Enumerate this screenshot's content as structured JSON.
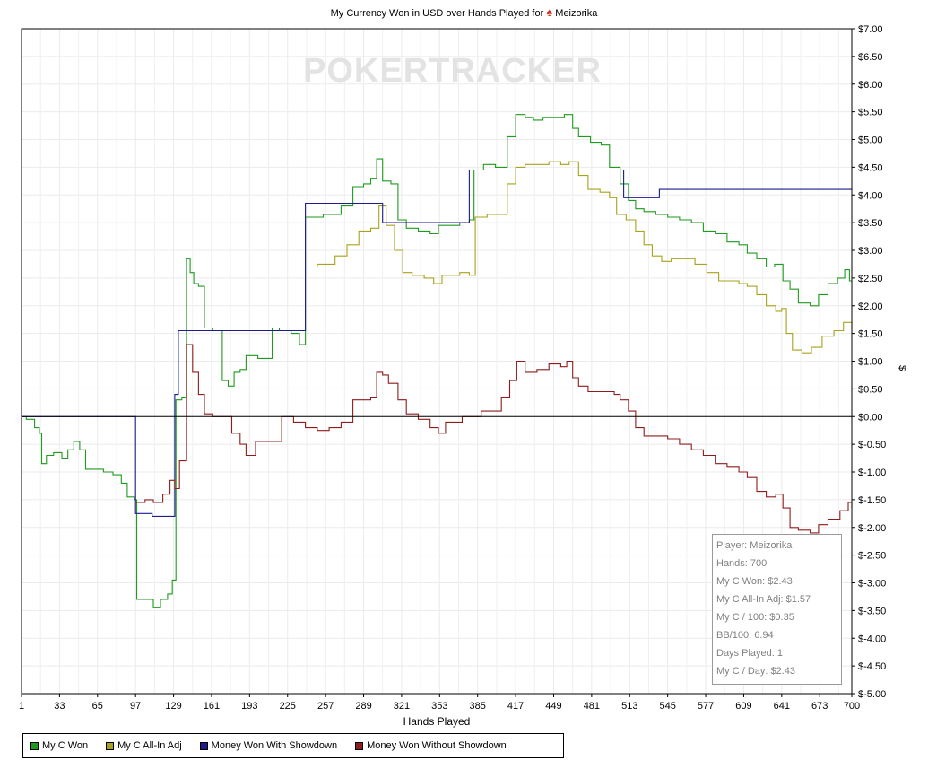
{
  "title_prefix": "My Currency Won in USD over Hands Played for",
  "player_name": "Meizorika",
  "watermark": "POKERTRACKER",
  "colors": {
    "green": "#1e9a1e",
    "olive": "#a8a21c",
    "blue": "#1c1c8e",
    "red": "#8e1c1c"
  },
  "stats": {
    "player": "Player: Meizorika",
    "hands": "Hands: 700",
    "won": "My C Won: $2.43",
    "allin": "My C All-In Adj: $1.57",
    "per100": "My C / 100: $0.35",
    "bb100": "BB/100: 6.94",
    "days": "Days Played: 1",
    "perday": "My C / Day: $2.43"
  },
  "chart_data": {
    "type": "line",
    "title": "My Currency Won in USD over Hands Played for Meizorika",
    "xlabel": "Hands Played",
    "ylabel": "$",
    "xlim": [
      1,
      700
    ],
    "ylim": [
      -5,
      7
    ],
    "x_ticks": [
      1,
      33,
      65,
      97,
      129,
      161,
      193,
      225,
      257,
      289,
      321,
      353,
      385,
      417,
      449,
      481,
      513,
      545,
      577,
      609,
      641,
      673,
      700
    ],
    "y_ticks": [
      "$7.00",
      "$6.50",
      "$6.00",
      "$5.50",
      "$5.00",
      "$4.50",
      "$4.00",
      "$3.50",
      "$3.00",
      "$2.50",
      "$2.00",
      "$1.50",
      "$1.00",
      "$0.50",
      "$0.00",
      "$-0.50",
      "$-1.00",
      "$-1.50",
      "$-2.00",
      "$-2.50",
      "$-3.00",
      "$-3.50",
      "$-4.00",
      "$-4.50",
      "$-5.00"
    ],
    "grid": true,
    "legend_position": "bottom-left",
    "series": [
      {
        "name": "My C Won",
        "color": "#1e9a1e",
        "points": [
          [
            1,
            0
          ],
          [
            5,
            -0.05
          ],
          [
            12,
            -0.2
          ],
          [
            16,
            -0.3
          ],
          [
            18,
            -0.85
          ],
          [
            22,
            -0.7
          ],
          [
            28,
            -0.65
          ],
          [
            35,
            -0.75
          ],
          [
            40,
            -0.6
          ],
          [
            45,
            -0.45
          ],
          [
            50,
            -0.6
          ],
          [
            55,
            -0.95
          ],
          [
            62,
            -0.95
          ],
          [
            70,
            -1.0
          ],
          [
            78,
            -1.05
          ],
          [
            85,
            -1.2
          ],
          [
            90,
            -1.45
          ],
          [
            96,
            -1.5
          ],
          [
            98,
            -3.3
          ],
          [
            105,
            -3.3
          ],
          [
            112,
            -3.45
          ],
          [
            118,
            -3.3
          ],
          [
            124,
            -3.2
          ],
          [
            128,
            -2.95
          ],
          [
            131,
            0.3
          ],
          [
            136,
            0.35
          ],
          [
            140,
            2.85
          ],
          [
            143,
            2.6
          ],
          [
            146,
            2.4
          ],
          [
            150,
            2.35
          ],
          [
            155,
            1.6
          ],
          [
            162,
            1.55
          ],
          [
            170,
            0.65
          ],
          [
            175,
            0.55
          ],
          [
            180,
            0.8
          ],
          [
            185,
            0.85
          ],
          [
            190,
            1.1
          ],
          [
            200,
            1.05
          ],
          [
            212,
            1.6
          ],
          [
            218,
            1.55
          ],
          [
            228,
            1.5
          ],
          [
            235,
            1.3
          ],
          [
            240,
            3.6
          ],
          [
            255,
            3.65
          ],
          [
            270,
            3.8
          ],
          [
            280,
            4.15
          ],
          [
            289,
            4.2
          ],
          [
            295,
            4.3
          ],
          [
            300,
            4.65
          ],
          [
            305,
            4.25
          ],
          [
            312,
            4.2
          ],
          [
            318,
            3.55
          ],
          [
            325,
            3.4
          ],
          [
            335,
            3.35
          ],
          [
            345,
            3.3
          ],
          [
            352,
            3.45
          ],
          [
            360,
            3.45
          ],
          [
            370,
            3.5
          ],
          [
            378,
            3.55
          ],
          [
            382,
            4.45
          ],
          [
            390,
            4.55
          ],
          [
            400,
            4.5
          ],
          [
            410,
            5.05
          ],
          [
            417,
            5.45
          ],
          [
            425,
            5.4
          ],
          [
            432,
            5.35
          ],
          [
            440,
            5.4
          ],
          [
            450,
            5.4
          ],
          [
            458,
            5.45
          ],
          [
            465,
            5.2
          ],
          [
            470,
            5.05
          ],
          [
            480,
            4.95
          ],
          [
            489,
            4.9
          ],
          [
            496,
            4.5
          ],
          [
            505,
            4.2
          ],
          [
            512,
            3.9
          ],
          [
            518,
            3.75
          ],
          [
            525,
            3.7
          ],
          [
            535,
            3.65
          ],
          [
            545,
            3.6
          ],
          [
            555,
            3.55
          ],
          [
            565,
            3.5
          ],
          [
            575,
            3.35
          ],
          [
            585,
            3.3
          ],
          [
            595,
            3.15
          ],
          [
            605,
            3.1
          ],
          [
            612,
            2.95
          ],
          [
            620,
            2.85
          ],
          [
            628,
            2.7
          ],
          [
            635,
            2.75
          ],
          [
            642,
            2.45
          ],
          [
            648,
            2.3
          ],
          [
            655,
            2.05
          ],
          [
            665,
            2.0
          ],
          [
            672,
            2.2
          ],
          [
            680,
            2.4
          ],
          [
            688,
            2.5
          ],
          [
            694,
            2.65
          ],
          [
            698,
            2.45
          ],
          [
            700,
            2.43
          ]
        ]
      },
      {
        "name": "My C All-In Adj",
        "color": "#a8a21c",
        "points": [
          [
            242,
            2.7
          ],
          [
            250,
            2.75
          ],
          [
            258,
            2.75
          ],
          [
            265,
            2.9
          ],
          [
            275,
            3.1
          ],
          [
            285,
            3.35
          ],
          [
            295,
            3.4
          ],
          [
            302,
            3.8
          ],
          [
            308,
            3.45
          ],
          [
            315,
            3.0
          ],
          [
            322,
            2.6
          ],
          [
            330,
            2.55
          ],
          [
            340,
            2.5
          ],
          [
            348,
            2.4
          ],
          [
            355,
            2.55
          ],
          [
            362,
            2.55
          ],
          [
            370,
            2.6
          ],
          [
            378,
            2.55
          ],
          [
            383,
            3.6
          ],
          [
            393,
            3.65
          ],
          [
            403,
            3.65
          ],
          [
            410,
            4.2
          ],
          [
            417,
            4.5
          ],
          [
            425,
            4.55
          ],
          [
            435,
            4.55
          ],
          [
            445,
            4.6
          ],
          [
            455,
            4.55
          ],
          [
            462,
            4.6
          ],
          [
            470,
            4.35
          ],
          [
            478,
            4.1
          ],
          [
            488,
            4.05
          ],
          [
            496,
            3.95
          ],
          [
            502,
            3.65
          ],
          [
            510,
            3.55
          ],
          [
            518,
            3.35
          ],
          [
            525,
            3.1
          ],
          [
            532,
            2.9
          ],
          [
            540,
            2.8
          ],
          [
            548,
            2.85
          ],
          [
            558,
            2.85
          ],
          [
            568,
            2.75
          ],
          [
            578,
            2.6
          ],
          [
            588,
            2.45
          ],
          [
            598,
            2.45
          ],
          [
            605,
            2.4
          ],
          [
            612,
            2.35
          ],
          [
            620,
            2.2
          ],
          [
            628,
            2.0
          ],
          [
            636,
            1.9
          ],
          [
            641,
            1.95
          ],
          [
            645,
            1.5
          ],
          [
            650,
            1.2
          ],
          [
            658,
            1.15
          ],
          [
            666,
            1.25
          ],
          [
            675,
            1.45
          ],
          [
            685,
            1.55
          ],
          [
            693,
            1.7
          ],
          [
            700,
            1.57
          ]
        ]
      },
      {
        "name": "Money Won With Showdown",
        "color": "#1c1c8e",
        "points": [
          [
            1,
            0
          ],
          [
            97,
            0
          ],
          [
            97,
            -1.75
          ],
          [
            111,
            -1.75
          ],
          [
            111,
            -1.8
          ],
          [
            130,
            -1.8
          ],
          [
            130,
            0.4
          ],
          [
            133,
            0.4
          ],
          [
            133,
            1.55
          ],
          [
            240,
            1.55
          ],
          [
            240,
            3.85
          ],
          [
            305,
            3.85
          ],
          [
            305,
            3.5
          ],
          [
            378,
            3.5
          ],
          [
            378,
            4.45
          ],
          [
            508,
            4.45
          ],
          [
            508,
            3.95
          ],
          [
            538,
            3.95
          ],
          [
            538,
            4.1
          ],
          [
            700,
            4.1
          ]
        ]
      },
      {
        "name": "Money Won Without Showdown",
        "color": "#8e1c1c",
        "points": [
          [
            97,
            -1.55
          ],
          [
            105,
            -1.5
          ],
          [
            112,
            -1.55
          ],
          [
            120,
            -1.4
          ],
          [
            126,
            -1.15
          ],
          [
            130,
            -1.3
          ],
          [
            134,
            -0.8
          ],
          [
            140,
            1.3
          ],
          [
            145,
            0.8
          ],
          [
            150,
            0.4
          ],
          [
            155,
            0.05
          ],
          [
            162,
            0.0
          ],
          [
            170,
            0.0
          ],
          [
            178,
            -0.3
          ],
          [
            185,
            -0.5
          ],
          [
            190,
            -0.7
          ],
          [
            198,
            -0.45
          ],
          [
            208,
            -0.45
          ],
          [
            220,
            0.0
          ],
          [
            230,
            -0.1
          ],
          [
            240,
            -0.2
          ],
          [
            250,
            -0.25
          ],
          [
            260,
            -0.2
          ],
          [
            270,
            -0.1
          ],
          [
            280,
            0.3
          ],
          [
            290,
            0.3
          ],
          [
            295,
            0.35
          ],
          [
            300,
            0.8
          ],
          [
            305,
            0.75
          ],
          [
            310,
            0.6
          ],
          [
            318,
            0.3
          ],
          [
            325,
            0.05
          ],
          [
            335,
            -0.05
          ],
          [
            345,
            -0.2
          ],
          [
            352,
            -0.3
          ],
          [
            358,
            -0.1
          ],
          [
            365,
            -0.1
          ],
          [
            372,
            0.0
          ],
          [
            380,
            0.0
          ],
          [
            388,
            0.1
          ],
          [
            398,
            0.1
          ],
          [
            405,
            0.35
          ],
          [
            412,
            0.65
          ],
          [
            418,
            1.0
          ],
          [
            425,
            0.8
          ],
          [
            435,
            0.85
          ],
          [
            445,
            0.95
          ],
          [
            455,
            0.9
          ],
          [
            460,
            1.0
          ],
          [
            465,
            0.7
          ],
          [
            470,
            0.55
          ],
          [
            478,
            0.45
          ],
          [
            490,
            0.45
          ],
          [
            500,
            0.4
          ],
          [
            505,
            0.3
          ],
          [
            512,
            0.1
          ],
          [
            518,
            -0.2
          ],
          [
            525,
            -0.35
          ],
          [
            535,
            -0.35
          ],
          [
            545,
            -0.4
          ],
          [
            555,
            -0.5
          ],
          [
            565,
            -0.6
          ],
          [
            575,
            -0.7
          ],
          [
            585,
            -0.85
          ],
          [
            595,
            -0.9
          ],
          [
            605,
            -1.0
          ],
          [
            612,
            -1.1
          ],
          [
            620,
            -1.35
          ],
          [
            628,
            -1.45
          ],
          [
            636,
            -1.4
          ],
          [
            642,
            -1.65
          ],
          [
            648,
            -2.0
          ],
          [
            655,
            -2.05
          ],
          [
            665,
            -2.1
          ],
          [
            672,
            -1.95
          ],
          [
            680,
            -1.85
          ],
          [
            690,
            -1.7
          ],
          [
            697,
            -1.55
          ],
          [
            700,
            -1.65
          ]
        ]
      }
    ]
  }
}
